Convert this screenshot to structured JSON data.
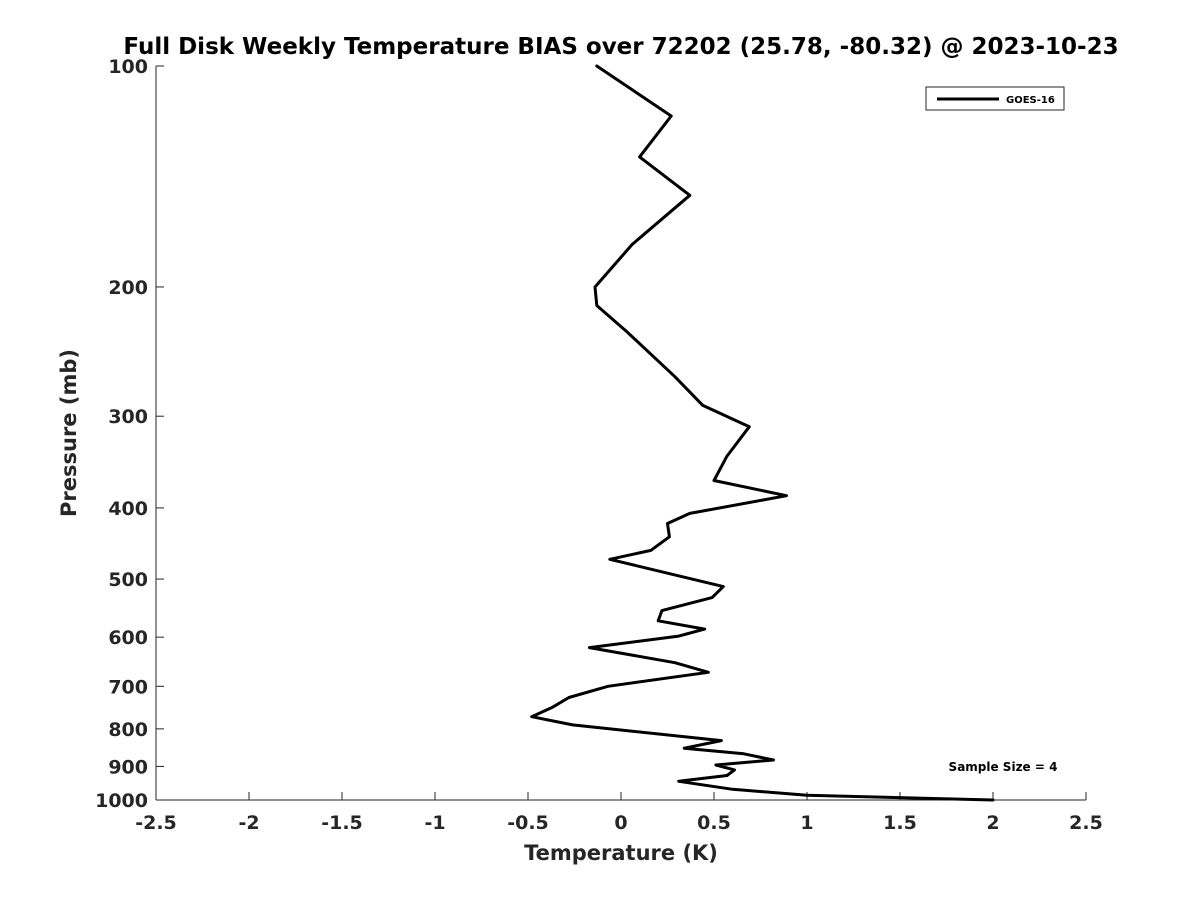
{
  "chart_data": {
    "type": "line",
    "title": "Full Disk Weekly Temperature BIAS over 72202 (25.78, -80.32) @ 2023-10-23",
    "xlabel": "Temperature (K)",
    "ylabel": "Pressure (mb)",
    "xlim": [
      -2.5,
      2.5
    ],
    "ylim": [
      100,
      1000
    ],
    "y_scale": "log",
    "y_reversed": true,
    "x_ticks": [
      -2.5,
      -2,
      -1.5,
      -1,
      -0.5,
      0,
      0.5,
      1,
      1.5,
      2,
      2.5
    ],
    "x_tick_labels": [
      "-2.5",
      "-2",
      "-1.5",
      "-1",
      "-0.5",
      "0",
      "0.5",
      "1",
      "1.5",
      "2",
      "2.5"
    ],
    "y_ticks": [
      100,
      200,
      300,
      400,
      500,
      600,
      700,
      800,
      900,
      1000
    ],
    "y_tick_labels": [
      "100",
      "200",
      "300",
      "400",
      "500",
      "600",
      "700",
      "800",
      "900",
      "1000"
    ],
    "grid": false,
    "legend_position": "top-right",
    "series": [
      {
        "name": "GOES-16",
        "color": "#000000",
        "x": [
          -0.13,
          0.27,
          0.1,
          0.37,
          0.06,
          -0.14,
          -0.13,
          0.03,
          0.29,
          0.44,
          0.69,
          0.57,
          0.5,
          0.89,
          0.37,
          0.25,
          0.26,
          0.16,
          -0.06,
          0.55,
          0.49,
          0.22,
          0.2,
          0.45,
          0.31,
          -0.17,
          0.29,
          0.47,
          -0.07,
          -0.28,
          -0.37,
          -0.48,
          -0.26,
          0.54,
          0.34,
          0.66,
          0.82,
          0.51,
          0.61,
          0.57,
          0.31,
          0.6,
          1.0,
          2.0
        ],
        "y": [
          100,
          117,
          133,
          150,
          175,
          200,
          212,
          230,
          265,
          290,
          310,
          340,
          367,
          385,
          407,
          420,
          438,
          457,
          470,
          512,
          530,
          552,
          570,
          585,
          598,
          620,
          650,
          670,
          700,
          725,
          748,
          770,
          790,
          830,
          850,
          865,
          882,
          896,
          910,
          926,
          943,
          967,
          985,
          1000
        ]
      }
    ],
    "annotations": [
      "Sample Size = 4"
    ]
  }
}
